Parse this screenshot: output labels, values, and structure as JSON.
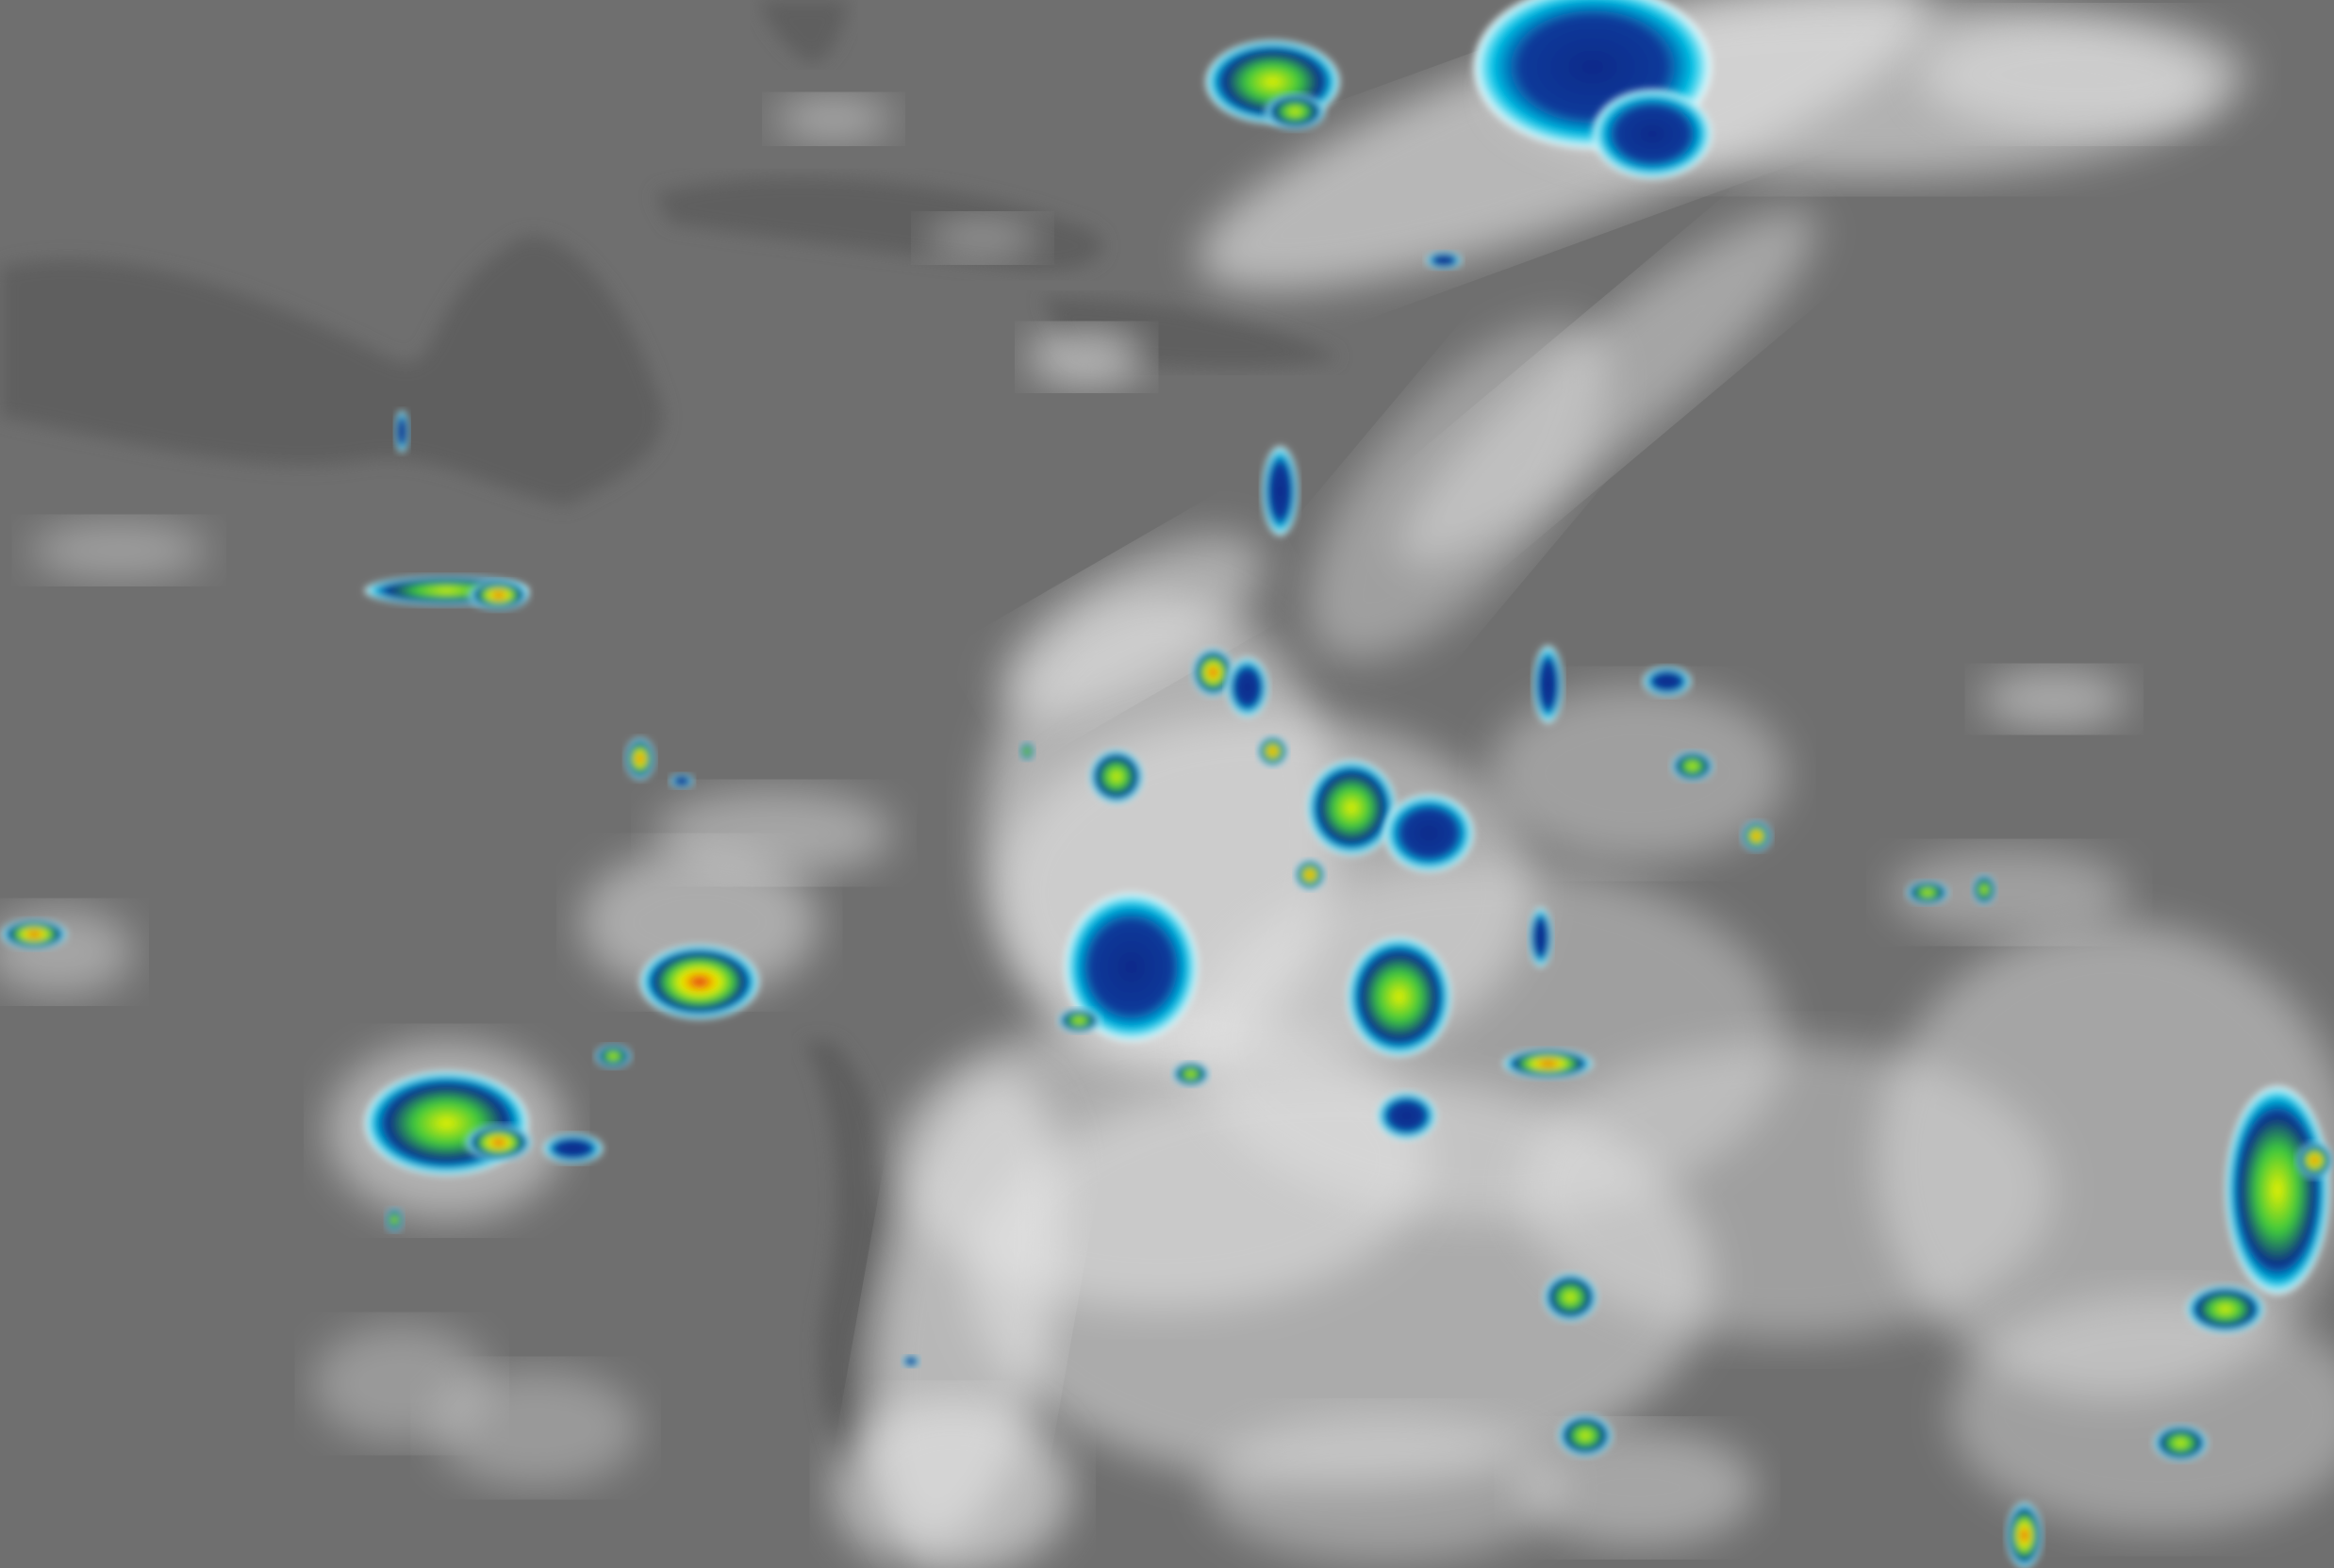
{
  "image": {
    "kind": "infrared-satellite-imagery",
    "colors": {
      "background_gray": "#6f6f6f",
      "land_dark_gray": "#5c5c5c",
      "cloud_white": "#e8e8e8",
      "cold_cyan": "#00c8e8",
      "cold_blue": "#0a2a8a",
      "colder_green": "#3cc83c",
      "coldest_yellow": "#e8f000",
      "coldest_red": "#e02020"
    }
  }
}
